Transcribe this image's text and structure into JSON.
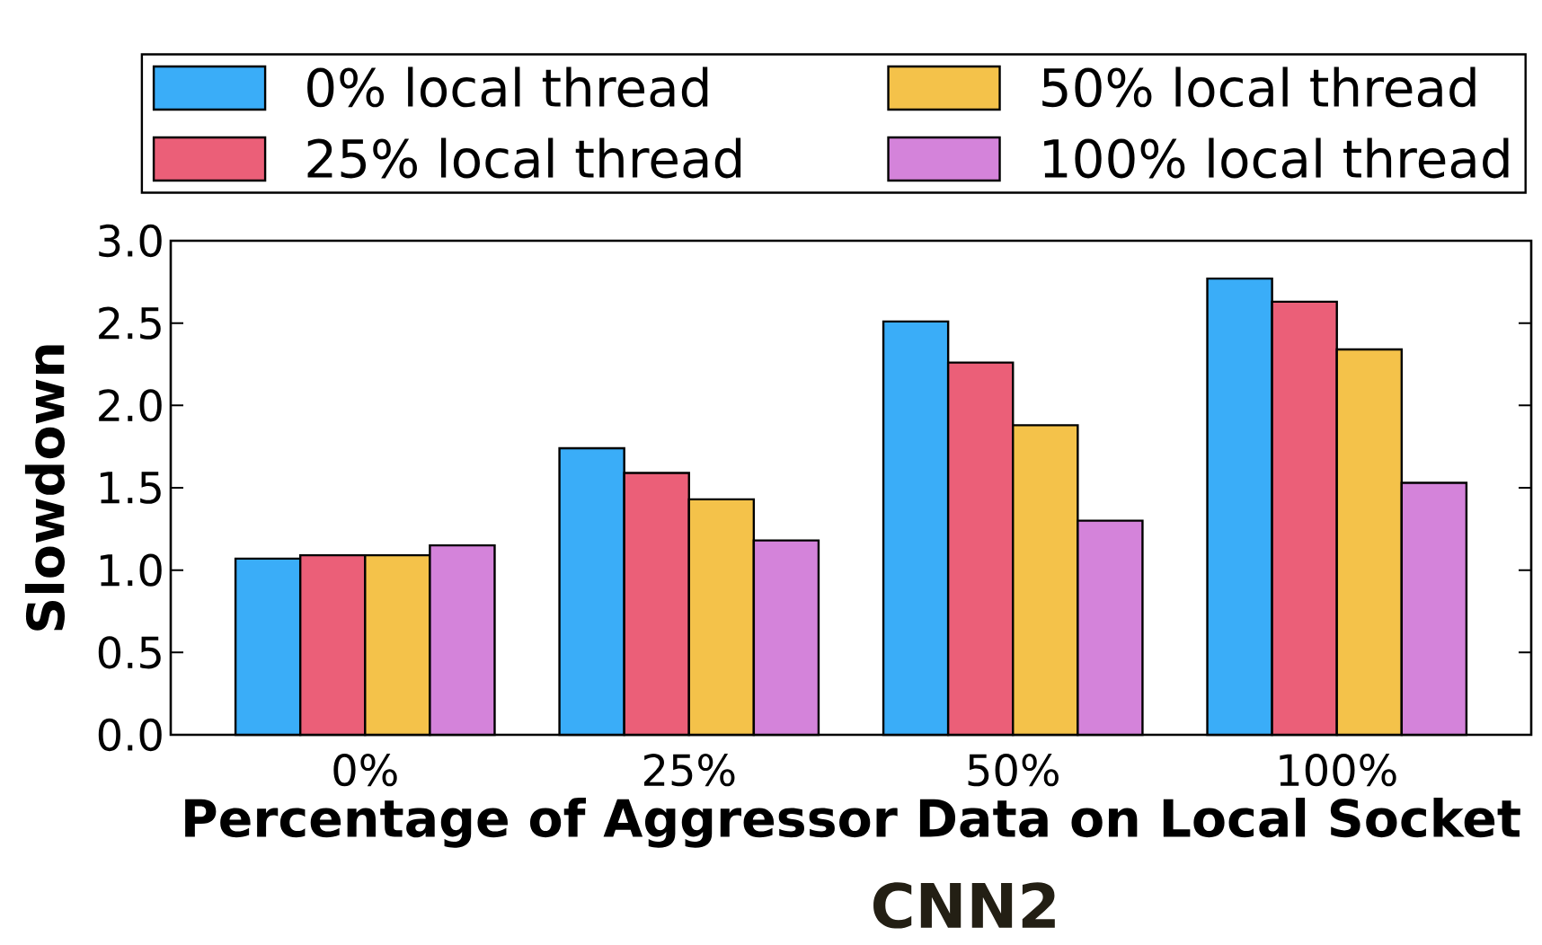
{
  "chart_data": {
    "type": "bar",
    "title": "CNN2",
    "xlabel": "Percentage of Aggressor Data on Local Socket",
    "ylabel": "Slowdown",
    "categories": [
      "0%",
      "25%",
      "50%",
      "100%"
    ],
    "series": [
      {
        "name": "0% local thread",
        "color": "#3aadf8",
        "values": [
          1.07,
          1.74,
          2.51,
          2.77
        ]
      },
      {
        "name": "25% local thread",
        "color": "#eb5f78",
        "values": [
          1.09,
          1.59,
          2.26,
          2.63
        ]
      },
      {
        "name": "50% local thread",
        "color": "#f4c24a",
        "values": [
          1.09,
          1.43,
          1.88,
          2.34
        ]
      },
      {
        "name": "100% local thread",
        "color": "#d483da",
        "values": [
          1.15,
          1.18,
          1.3,
          1.53
        ]
      }
    ],
    "ylim": [
      0,
      3
    ],
    "yticks": [
      {
        "value": 0,
        "label": "0.0"
      },
      0.5,
      {
        "value": 1,
        "label": "1.0"
      },
      1.5,
      {
        "value": 2,
        "label": "2.0"
      },
      2.5,
      {
        "value": 3,
        "label": "3.0"
      }
    ],
    "legend": "top",
    "grid": false
  }
}
